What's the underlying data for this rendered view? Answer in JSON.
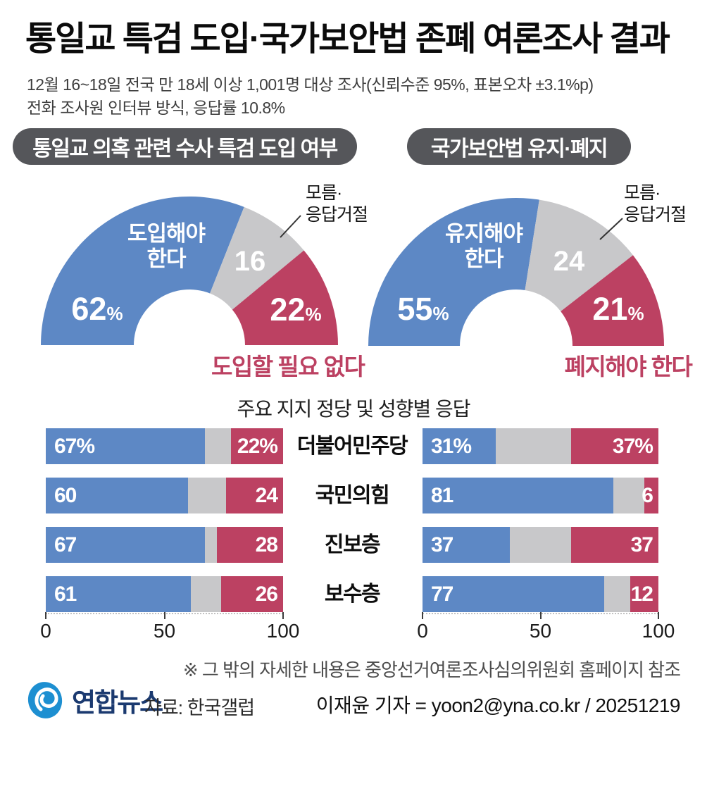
{
  "page": {
    "title": "통일교 특검 도입·국가보안법 존폐 여론조사 결과",
    "subtitle_line1": "12월 16~18일 전국 만 18세 이상 1,001명 대상 조사(신뢰수준 95%, 표본오차 ±3.1%p)",
    "subtitle_line2": "전화 조사원 인터뷰 방식, 응답률 10.8%",
    "footnote": "※ 그 밖의 자세한 내용은 중앙선거여론조사심의위원회 홈페이지 참조",
    "logo_text": "연합뉴스",
    "source_label": "자료: 한국갤럽",
    "byline": "이재윤 기자 = yoon2@yna.co.kr / 20251219"
  },
  "colors": {
    "blue": "#5d88c5",
    "gray": "#c8c8ca",
    "red": "#bc4162",
    "badge_bg": "#55565a",
    "logo_blue": "#1d8fd1",
    "logo_navy": "#1b3a70"
  },
  "chart_data": [
    {
      "type": "pie",
      "subtype": "semi-donut",
      "title": "통일교 의혹 관련 수사 특검 도입 여부",
      "labels": [
        "도입해야 한다",
        "모름·응답거절",
        "도입할 필요 없다"
      ],
      "values": [
        62,
        16,
        22
      ],
      "displays": [
        "62%",
        "16",
        "22%"
      ],
      "colors": [
        "#5d88c5",
        "#c8c8ca",
        "#bc4162"
      ]
    },
    {
      "type": "pie",
      "subtype": "semi-donut",
      "title": "국가보안법 유지·폐지",
      "labels": [
        "유지해야 한다",
        "모름·응답거절",
        "폐지해야 한다"
      ],
      "values": [
        55,
        24,
        21
      ],
      "displays": [
        "55%",
        "24",
        "21%"
      ],
      "colors": [
        "#5d88c5",
        "#c8c8ca",
        "#bc4162"
      ]
    },
    {
      "type": "bar",
      "subtype": "stacked-horizontal",
      "title": "주요 지지 정당 및 성향별 응답",
      "categories": [
        "더불어민주당",
        "국민의힘",
        "진보층",
        "보수층"
      ],
      "series": [
        {
          "name": "도입해야 한다",
          "color": "#5d88c5",
          "values": [
            67,
            60,
            67,
            61
          ]
        },
        {
          "name": "모름·응답거절",
          "color": "#c8c8ca",
          "values": [
            11,
            16,
            5,
            13
          ]
        },
        {
          "name": "도입할 필요 없다",
          "color": "#bc4162",
          "values": [
            22,
            24,
            28,
            26
          ]
        }
      ],
      "value_labels": {
        "blue": [
          "67%",
          "60",
          "67",
          "61"
        ],
        "red": [
          "22%",
          "24",
          "28",
          "26"
        ]
      },
      "xlim": [
        0,
        100
      ],
      "ticks": [
        0,
        50,
        100
      ]
    },
    {
      "type": "bar",
      "subtype": "stacked-horizontal",
      "title": "주요 지지 정당 및 성향별 응답",
      "categories": [
        "더불어민주당",
        "국민의힘",
        "진보층",
        "보수층"
      ],
      "series": [
        {
          "name": "유지해야 한다",
          "color": "#5d88c5",
          "values": [
            31,
            81,
            37,
            77
          ]
        },
        {
          "name": "모름·응답거절",
          "color": "#c8c8ca",
          "values": [
            32,
            13,
            26,
            11
          ]
        },
        {
          "name": "폐지해야 한다",
          "color": "#bc4162",
          "values": [
            37,
            6,
            37,
            12
          ]
        }
      ],
      "value_labels": {
        "blue": [
          "31%",
          "81",
          "37",
          "77"
        ],
        "red": [
          "37%",
          "6",
          "37",
          "12"
        ]
      },
      "xlim": [
        0,
        100
      ],
      "ticks": [
        0,
        50,
        100
      ]
    }
  ]
}
